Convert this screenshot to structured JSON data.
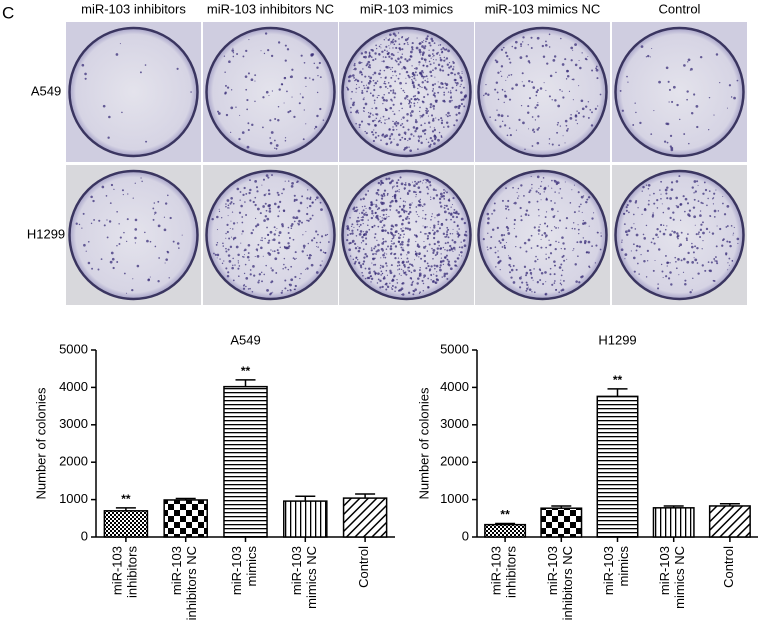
{
  "panel_label": "C",
  "image_grid": {
    "columns": [
      "miR-103 inhibitors",
      "miR-103 inhibitors NC",
      "miR-103 mimics",
      "miR-103 mimics NC",
      "Control"
    ],
    "rows": [
      "A549",
      "H1299"
    ]
  },
  "chart_data": [
    {
      "type": "bar",
      "title": "A549",
      "y_label": "Number of colonies",
      "categories": [
        "miR-103 inhibitors",
        "miR-103 inhibitors NC",
        "miR-103 mimics",
        "miR-103 mimics NC",
        "Control"
      ],
      "values": [
        700,
        990,
        4020,
        960,
        1040
      ],
      "errors": [
        80,
        40,
        180,
        130,
        110
      ],
      "annotations": [
        "**",
        null,
        "**",
        null,
        null
      ],
      "ylim": [
        0,
        5000
      ],
      "yticks": [
        0,
        1000,
        2000,
        3000,
        4000,
        5000
      ],
      "color": "#000000"
    },
    {
      "type": "bar",
      "title": "H1299",
      "y_label": "Number of colonies",
      "categories": [
        "miR-103 inhibitors",
        "miR-103 inhibitors NC",
        "miR-103 mimics",
        "miR-103 mimics NC",
        "Control"
      ],
      "values": [
        330,
        770,
        3760,
        780,
        830
      ],
      "errors": [
        30,
        60,
        200,
        50,
        60
      ],
      "annotations": [
        "**",
        null,
        "**",
        null,
        null
      ],
      "ylim": [
        0,
        5000
      ],
      "yticks": [
        0,
        1000,
        2000,
        3000,
        4000,
        5000
      ],
      "color": "#000000"
    }
  ]
}
